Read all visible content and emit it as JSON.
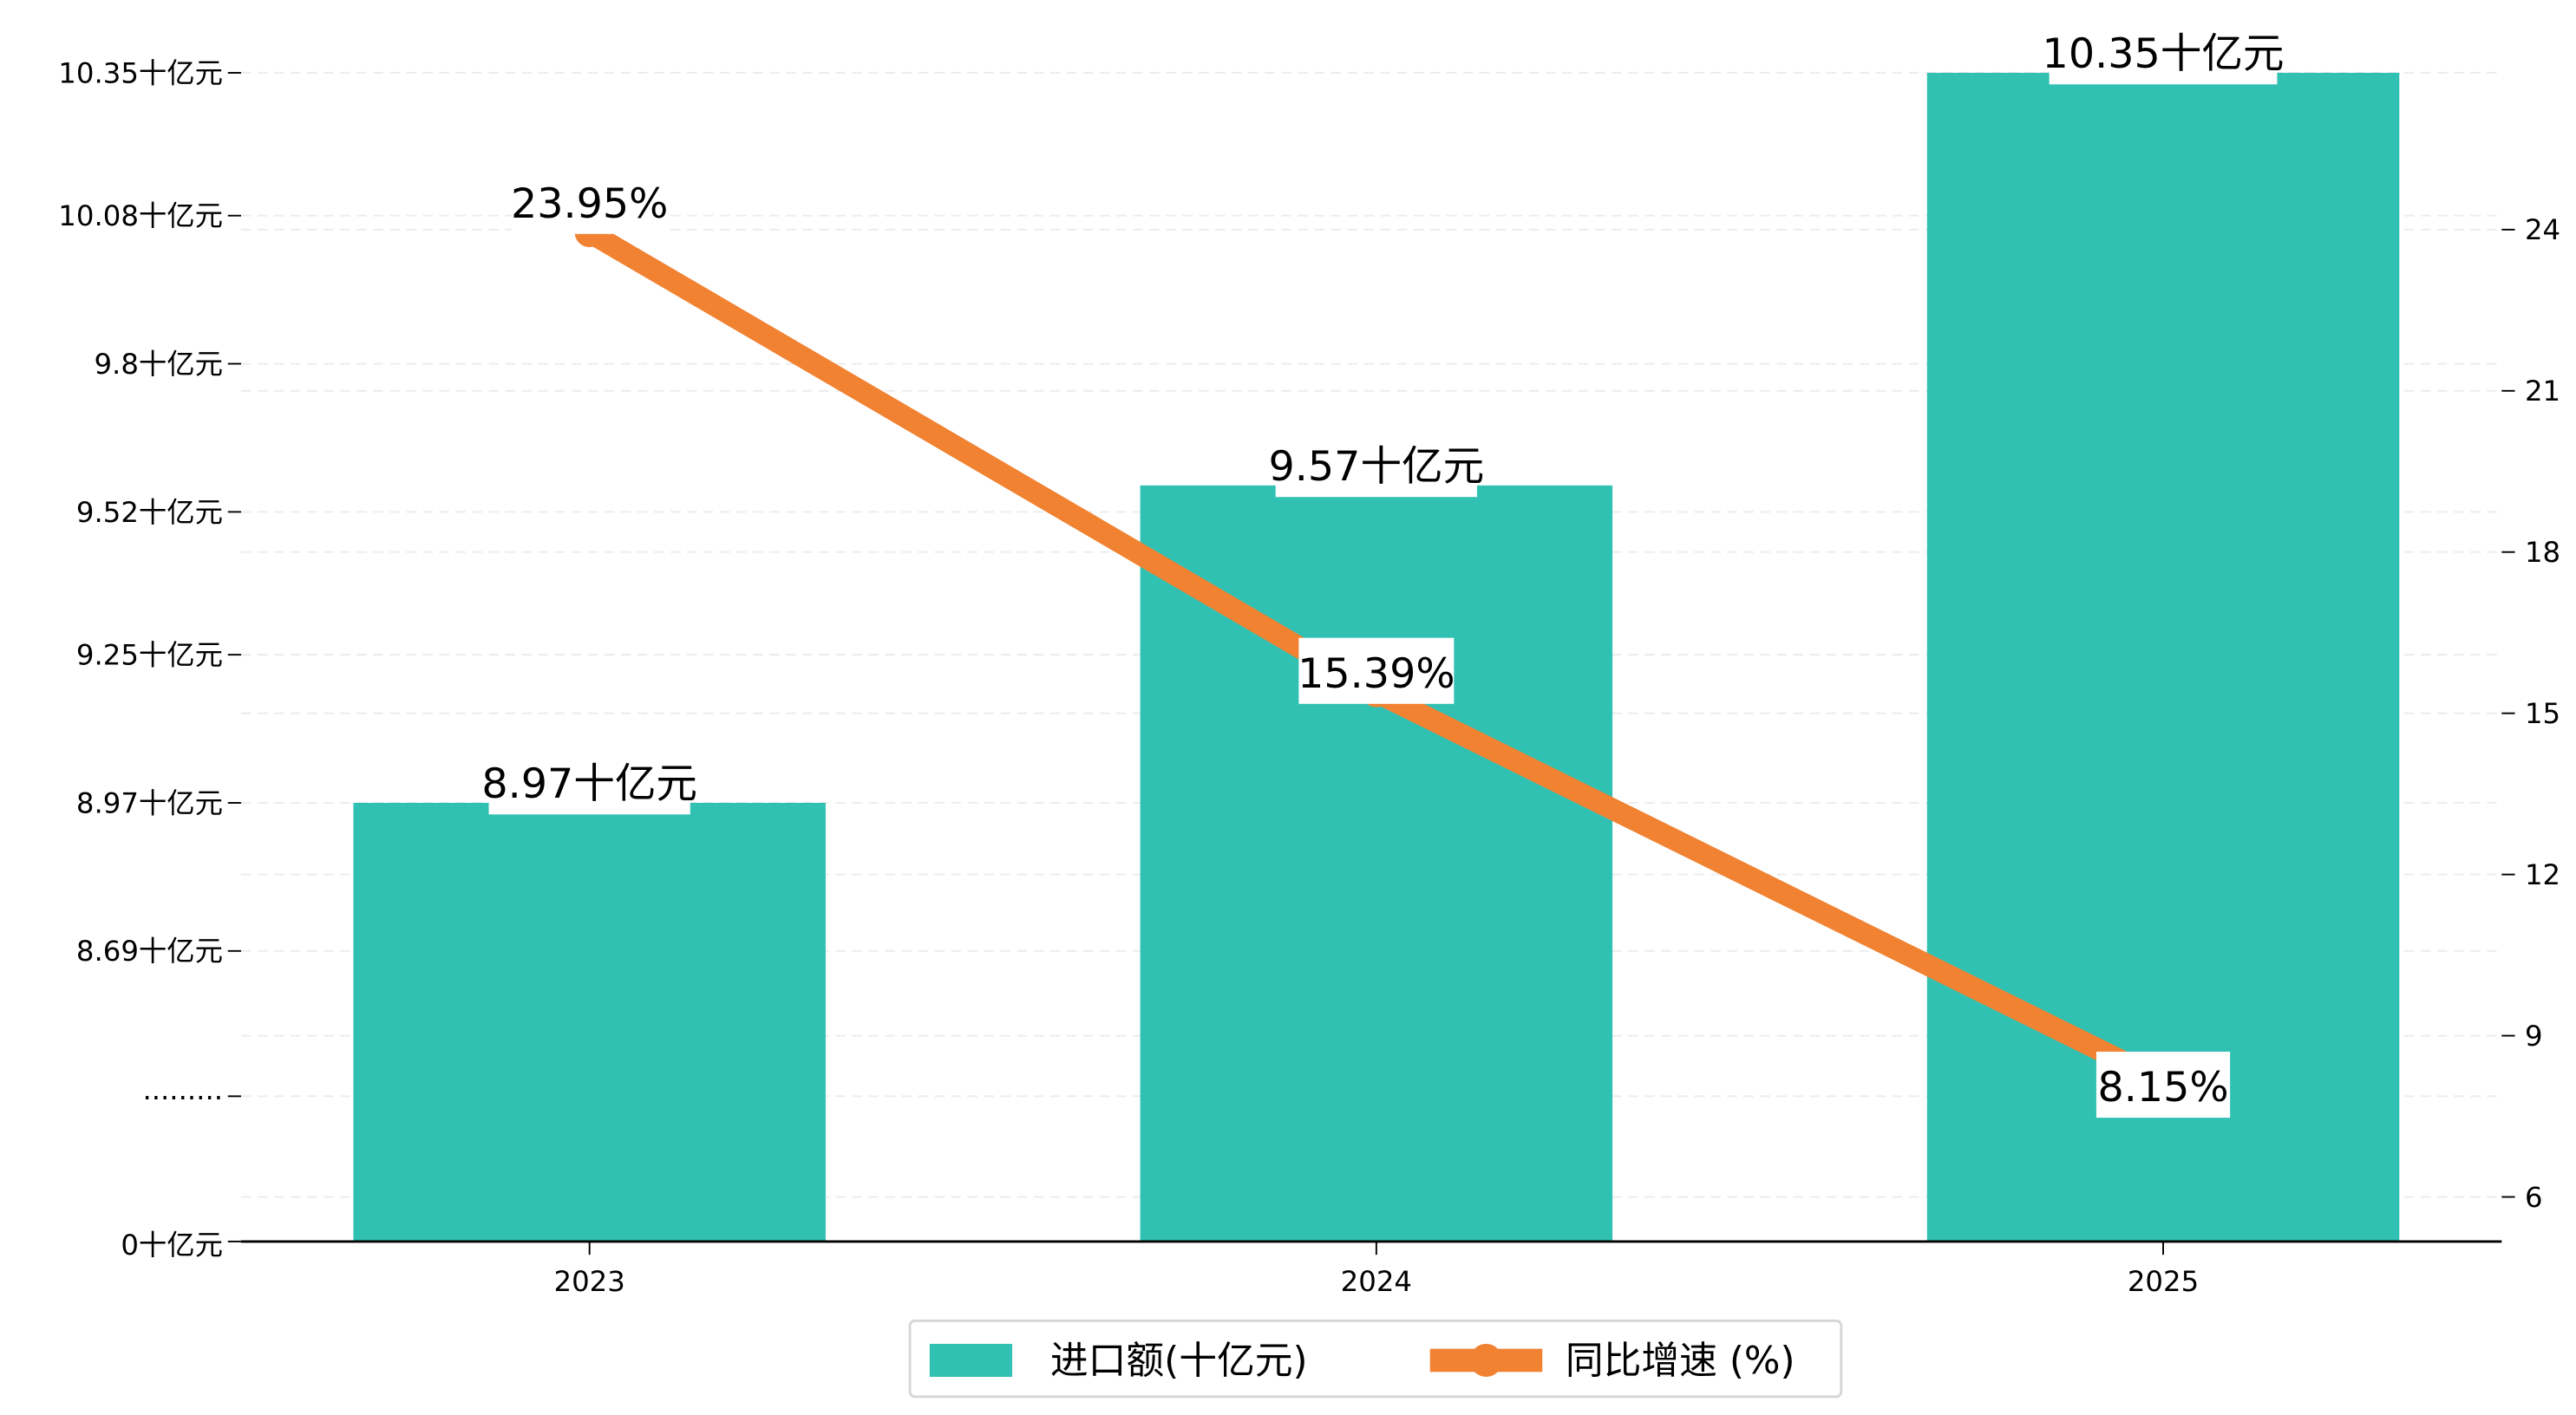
{
  "chart_data": {
    "type": "bar+line",
    "categories": [
      "2023",
      "2024",
      "2025"
    ],
    "series": [
      {
        "name": "进口额(十亿元)",
        "type": "bar",
        "axis": "left",
        "values": [
          8.97,
          9.57,
          10.35
        ],
        "labels": [
          "8.97十亿元",
          "9.57十亿元",
          "10.35十亿元"
        ],
        "color": "#20bcad"
      },
      {
        "name": "同比增速 (%)",
        "type": "line",
        "axis": "right",
        "values": [
          23.95,
          15.39,
          8.15
        ],
        "labels": [
          "23.95%",
          "15.39%",
          "8.15%"
        ],
        "color": "#f08232"
      }
    ],
    "left_axis": {
      "ticks": [
        10.35,
        10.08,
        9.8,
        9.52,
        9.25,
        8.97,
        8.69
      ],
      "tick_labels": [
        "10.35十亿元",
        "10.08十亿元",
        "9.8十亿元",
        "9.52十亿元",
        "9.25十亿元",
        "8.97十亿元",
        "8.69十亿元"
      ],
      "break_label": ".........",
      "zero_label": "0十亿元",
      "broken": true,
      "range_upper": [
        8.69,
        10.35
      ]
    },
    "right_axis": {
      "ticks": [
        24,
        21,
        18,
        15,
        12,
        9,
        6
      ],
      "tick_labels": [
        "24",
        "21",
        "18",
        "15",
        "12",
        "9",
        "6"
      ],
      "ylim": [
        5.3,
        27.4
      ]
    },
    "grid": true,
    "legend_position": "bottom-center",
    "legend": [
      "进口额(十亿元)",
      "同比增速 (%)"
    ]
  }
}
